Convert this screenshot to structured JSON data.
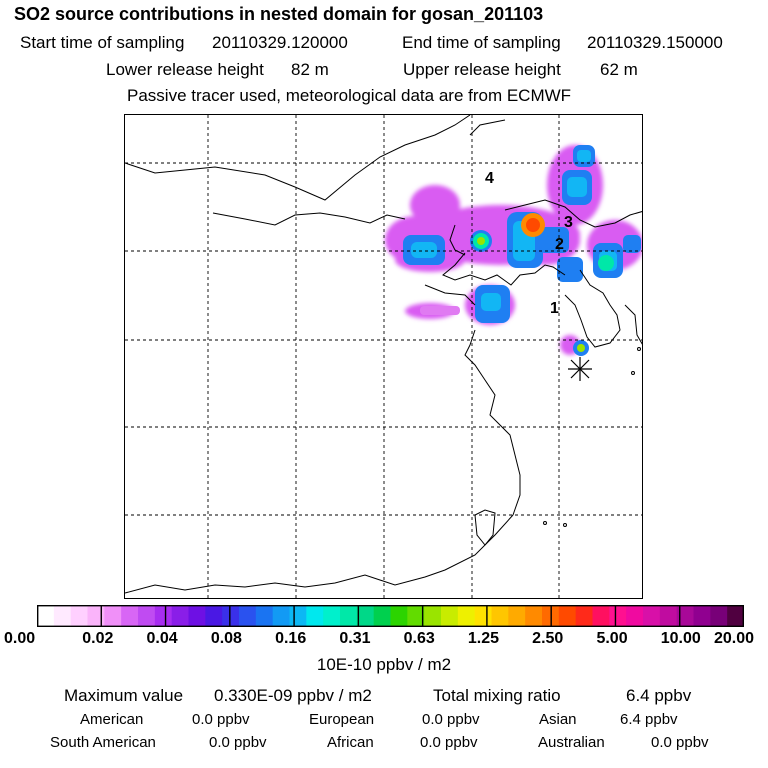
{
  "title": "SO2 source contributions in nested domain for gosan_201103",
  "sampling": {
    "start_label": "Start time of sampling",
    "start_value": "20110329.120000",
    "end_label": "End time of sampling",
    "end_value": "20110329.150000"
  },
  "release": {
    "lower_label": "Lower release height",
    "lower_value": "82 m",
    "upper_label": "Upper release height",
    "upper_value": "62 m"
  },
  "note": "Passive tracer used, meteorological data are from ECMWF",
  "colorbar": {
    "tick_labels": [
      "0.00",
      "0.02",
      "0.04",
      "0.08",
      "0.16",
      "0.31",
      "0.63",
      "1.25",
      "2.50",
      "5.00",
      "10.00",
      "20.00"
    ],
    "units": "10E-10 ppbv / m2",
    "colors": [
      "#ffffff",
      "#ffeaff",
      "#ffd0ff",
      "#fab4fa",
      "#f090f8",
      "#d866f5",
      "#c04bf2",
      "#a82df0",
      "#8a1ee8",
      "#6e10e4",
      "#4a18e4",
      "#3a30ea",
      "#2a52ef",
      "#1a74f2",
      "#129af4",
      "#0cb8f4",
      "#00e8ee",
      "#00f0cc",
      "#00e8a8",
      "#00d888",
      "#00d04e",
      "#2cd400",
      "#62dc00",
      "#9ae400",
      "#c8ec00",
      "#eef000",
      "#ffe200",
      "#ffc600",
      "#ffaa00",
      "#ff8a00",
      "#ff6a00",
      "#ff4a00",
      "#ff2a1a",
      "#ff1060",
      "#ff1090",
      "#f00aa0",
      "#d810a8",
      "#c00ca0",
      "#a80898",
      "#900090",
      "#780078",
      "#500040"
    ]
  },
  "stats": {
    "max_label": "Maximum value",
    "max_value": "0.330E-09 ppbv / m2",
    "total_label": "Total mixing ratio",
    "total_value": "6.4 ppbv"
  },
  "regions": [
    {
      "label": "American",
      "value": "0.0 ppbv"
    },
    {
      "label": "European",
      "value": "0.0 ppbv"
    },
    {
      "label": "Asian",
      "value": "6.4 ppbv"
    },
    {
      "label": "South American",
      "value": "0.0 ppbv"
    },
    {
      "label": "African",
      "value": "0.0 ppbv"
    },
    {
      "label": "Australian",
      "value": "0.0 ppbv"
    }
  ],
  "map_labels": [
    "1",
    "2",
    "3",
    "4"
  ],
  "chart_data": {
    "type": "heatmap",
    "title": "SO2 source contributions in nested domain for gosan_201103",
    "color_scale": [
      0.0,
      0.02,
      0.04,
      0.08,
      0.16,
      0.31,
      0.63,
      1.25,
      2.5,
      5.0,
      10.0,
      20.0
    ],
    "units": "10E-10 ppbv / m2",
    "grid": true,
    "legend_placement": "bottom",
    "max_value": "0.330E-09 ppbv / m2",
    "total_mixing_ratio": "6.4 ppbv"
  }
}
